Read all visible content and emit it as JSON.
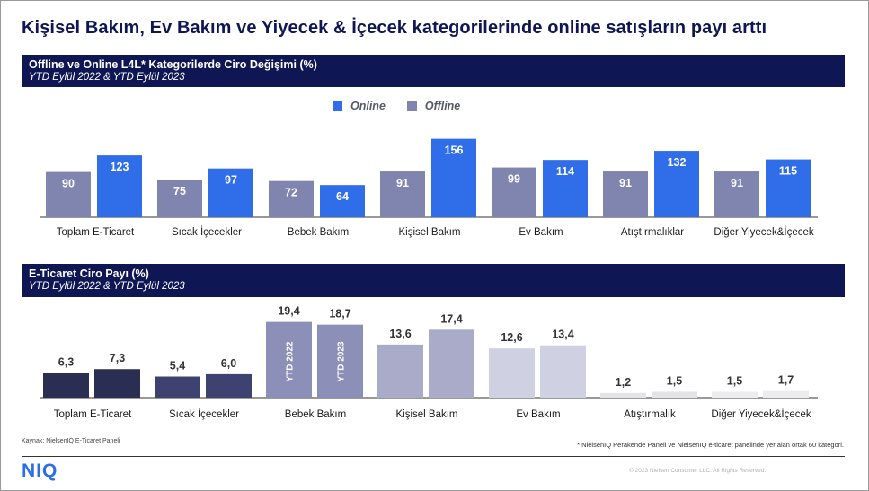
{
  "title": "Kişisel Bakım, Ev Bakım ve Yiyecek & İçecek kategorilerinde online satışların payı arttı",
  "panel1": {
    "heading": "Offline ve Online L4L* Kategorilerde Ciro Değişimi (%)",
    "subheading": "YTD Eylül 2022 & YTD Eylül 2023",
    "legend": {
      "online": "Online",
      "offline": "Offline"
    }
  },
  "panel2": {
    "heading": "E-Ticaret Ciro Payı (%)",
    "subheading": "YTD Eylül 2022 & YTD Eylül 2023"
  },
  "colors": {
    "online": "#2f6ee8",
    "offline": "#8085b0",
    "navy": "#0f1654",
    "share_2022": [
      "#2a2e52",
      "#3e4270",
      "#8c8fb8",
      "#a9abc9",
      "#cfd0e2",
      "#e3e3e8",
      "#ececef"
    ],
    "share_2023": [
      "#2a2e52",
      "#3e4270",
      "#8c8fb8",
      "#a9abc9",
      "#cfd0e2",
      "#e3e3e8",
      "#ececef"
    ]
  },
  "chart_data": [
    {
      "type": "bar",
      "categories": [
        "Toplam E-Ticaret",
        "Sıcak İçecekler",
        "Bebek Bakım",
        "Kişisel Bakım",
        "Ev Bakım",
        "Atıştırmalıklar",
        "Diğer Yiyecek&İçecek"
      ],
      "series": [
        {
          "name": "Offline",
          "values": [
            90,
            75,
            72,
            91,
            99,
            91,
            91
          ]
        },
        {
          "name": "Online",
          "values": [
            123,
            97,
            64,
            156,
            114,
            132,
            115
          ]
        }
      ],
      "title": "Offline ve Online L4L* Kategorilerde Ciro Değişimi (%)",
      "subtitle": "YTD Eylül 2022 & YTD Eylül 2023",
      "ylim": [
        0,
        160
      ],
      "legend": "top-center",
      "grid": false
    },
    {
      "type": "bar",
      "categories": [
        "Toplam E-Ticaret",
        "Sıcak İçecekler",
        "Bebek Bakım",
        "Kişisel Bakım",
        "Ev Bakım",
        "Atıştırmalık",
        "Diğer Yiyecek&İçecek"
      ],
      "series": [
        {
          "name": "YTD 2022",
          "values": [
            6.3,
            5.4,
            19.4,
            13.6,
            12.6,
            1.2,
            1.5
          ]
        },
        {
          "name": "YTD 2023",
          "values": [
            7.3,
            6.0,
            18.7,
            17.4,
            13.4,
            1.5,
            1.7
          ]
        }
      ],
      "value_labels_2022": [
        "6,3",
        "5,4",
        "19,4",
        "13,6",
        "12,6",
        "1,2",
        "1,5"
      ],
      "value_labels_2023": [
        "7,3",
        "6,0",
        "18,7",
        "17,4",
        "13,4",
        "1,5",
        "1,7"
      ],
      "title": "E-Ticaret Ciro Payı (%)",
      "subtitle": "YTD Eylül 2022 & YTD Eylül 2023",
      "ylim": [
        0,
        20
      ],
      "grid": false
    }
  ],
  "footer": {
    "source": "Kaynak:  NielsenIQ  E-Ticaret Paneli",
    "note": "* NielsenIQ Perakende Paneli  ve NielsenIQ e-ticaret panelinde  yer alan ortak 60 kategori.",
    "logo": "NIQ",
    "copyright": "© 2023 Nielsen Consumer LLC. All Rights Reserved."
  }
}
